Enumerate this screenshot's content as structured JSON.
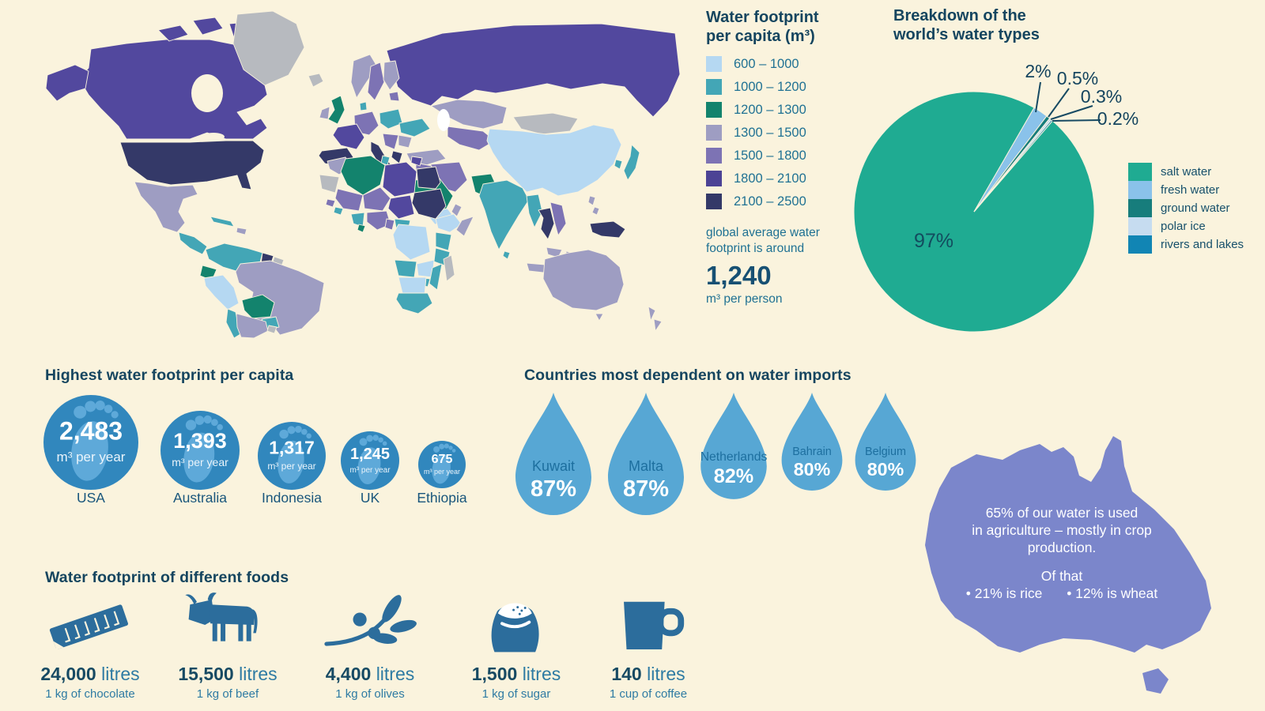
{
  "colors": {
    "background": "#faf3dd",
    "ink_dark": "#15455f",
    "ink": "#1f7193",
    "map_no_data": "#b7babf",
    "footprint_circle": "#3187bd",
    "footprint_foot": "#5ea9d9",
    "water_drop": "#57a7d4",
    "drop_label": "#1d6f9f",
    "food_icon": "#2c6d9c",
    "australia_fill": "#7b86cb"
  },
  "map_legend": {
    "title": "Water footprint\nper capita (m³)",
    "items": [
      {
        "label": "600 – 1000",
        "color": "#b5d8f2"
      },
      {
        "label": "1000 – 1200",
        "color": "#43a6b6"
      },
      {
        "label": "1200 – 1300",
        "color": "#13836d"
      },
      {
        "label": "1300 – 1500",
        "color": "#9e9dc2"
      },
      {
        "label": "1500 – 1800",
        "color": "#7d73b4"
      },
      {
        "label": "1800 – 2100",
        "color": "#4c4395"
      },
      {
        "label": "2100 – 2500",
        "color": "#343968"
      }
    ],
    "avg_note": "global average water\nfootprint is around",
    "avg_value": "1,240",
    "avg_unit": "m³ per person"
  },
  "pie": {
    "title": "Breakdown of the\nworld’s water types"
  },
  "highest": {
    "title": "Highest water footprint per capita",
    "unit": "m³ per year",
    "items": [
      {
        "country": "USA",
        "value": "2,483"
      },
      {
        "country": "Australia",
        "value": "1,393"
      },
      {
        "country": "Indonesia",
        "value": "1,317"
      },
      {
        "country": "UK",
        "value": "1,245"
      },
      {
        "country": "Ethiopia",
        "value": "675"
      }
    ]
  },
  "imports": {
    "title": "Countries most dependent on water imports",
    "items": [
      {
        "country": "Kuwait",
        "value": "87%"
      },
      {
        "country": "Malta",
        "value": "87%"
      },
      {
        "country": "Netherlands",
        "value": "82%"
      },
      {
        "country": "Bahrain",
        "value": "80%"
      },
      {
        "country": "Belgium",
        "value": "80%"
      }
    ]
  },
  "australia": {
    "line1": "65% of our water is used",
    "line2": "in agriculture – mostly in crop",
    "line3": "production.",
    "of_that": "Of that",
    "bullet1": "• 21% is rice",
    "bullet2": "• 12% is wheat"
  },
  "foods": {
    "title": "Water footprint of different foods",
    "items": [
      {
        "value": "24,000",
        "unit": "litres",
        "desc": "1 kg of chocolate",
        "icon": "chocolate-bar-icon"
      },
      {
        "value": "15,500",
        "unit": "litres",
        "desc": "1 kg of beef",
        "icon": "cow-icon"
      },
      {
        "value": "4,400",
        "unit": "litres",
        "desc": "1 kg of olives",
        "icon": "olive-branch-icon"
      },
      {
        "value": "1,500",
        "unit": "litres",
        "desc": "1 kg of sugar",
        "icon": "sugar-sack-icon"
      },
      {
        "value": "140",
        "unit": "litres",
        "desc": "1 cup of coffee",
        "icon": "coffee-mug-icon"
      }
    ]
  },
  "chart_data": [
    {
      "type": "pie",
      "title": "Breakdown of the world’s water types",
      "labels": [
        "salt water",
        "fresh water",
        "ground water",
        "polar ice",
        "rivers and lakes"
      ],
      "values": [
        97,
        2,
        0.5,
        0.3,
        0.2
      ],
      "value_labels": [
        "97%",
        "2%",
        "0.5%",
        "0.3%",
        "0.2%"
      ],
      "colors": [
        "#1fab92",
        "#8ac2ea",
        "#177d7c",
        "#c6dcf0",
        "#1185b4"
      ],
      "legend_position": "right"
    },
    {
      "type": "choropleth-map",
      "title": "Water footprint per capita (m³)",
      "bins": [
        "600 – 1000",
        "1000 – 1200",
        "1200 – 1300",
        "1300 – 1500",
        "1500 – 1800",
        "1800 – 2100",
        "2100 – 2500"
      ],
      "bin_colors": [
        "#b5d8f2",
        "#43a6b6",
        "#13836d",
        "#9e9dc2",
        "#7d73b4",
        "#4c4395",
        "#343968"
      ],
      "note": "global average water footprint is around 1,240 m³ per person"
    },
    {
      "type": "pictogram",
      "title": "Highest water footprint per capita",
      "unit": "m³ per year",
      "categories": [
        "USA",
        "Australia",
        "Indonesia",
        "UK",
        "Ethiopia"
      ],
      "values": [
        2483,
        1393,
        1317,
        1245,
        675
      ]
    },
    {
      "type": "pictogram",
      "title": "Countries most dependent on water imports",
      "unit": "%",
      "categories": [
        "Kuwait",
        "Malta",
        "Netherlands",
        "Bahrain",
        "Belgium"
      ],
      "values": [
        87,
        87,
        82,
        80,
        80
      ]
    },
    {
      "type": "pictogram",
      "title": "Water footprint of different foods",
      "unit": "litres",
      "categories": [
        "1 kg of chocolate",
        "1 kg of beef",
        "1 kg of olives",
        "1 kg of sugar",
        "1 cup of coffee"
      ],
      "values": [
        24000,
        15500,
        4400,
        1500,
        140
      ]
    },
    {
      "type": "text",
      "title": "Australia water use",
      "notes": [
        "65% of our water is used in agriculture – mostly in crop production.",
        "Of that: 21% is rice, 12% is wheat"
      ]
    }
  ]
}
